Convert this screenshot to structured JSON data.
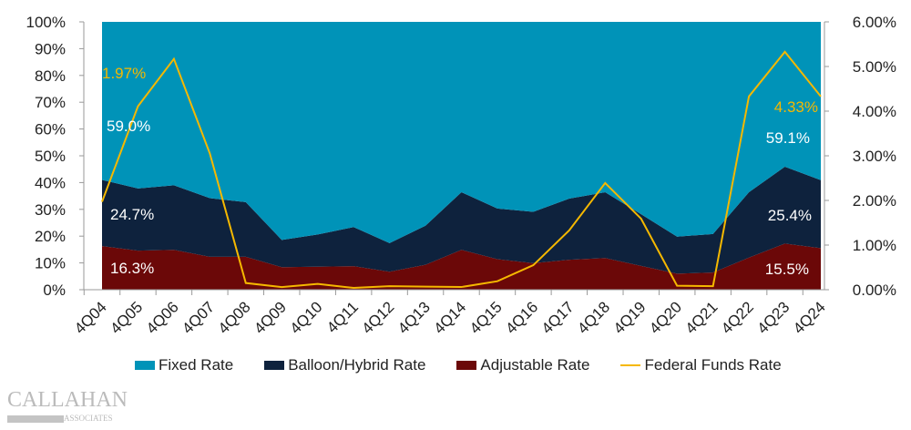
{
  "chart_data": {
    "type": "area",
    "categories": [
      "4Q04",
      "4Q05",
      "4Q06",
      "4Q07",
      "4Q08",
      "4Q09",
      "4Q10",
      "4Q11",
      "4Q12",
      "4Q13",
      "4Q14",
      "4Q15",
      "4Q16",
      "4Q17",
      "4Q18",
      "4Q19",
      "4Q20",
      "4Q21",
      "4Q22",
      "4Q23",
      "4Q24"
    ],
    "series": [
      {
        "name": "Adjustable Rate",
        "type": "stacked-area",
        "axis": "left",
        "color": "#6b0808",
        "values": [
          16.3,
          14.6,
          14.9,
          12.3,
          12.3,
          8.4,
          8.6,
          8.8,
          6.7,
          9.3,
          14.9,
          11.4,
          9.9,
          11.2,
          11.8,
          8.9,
          6.0,
          6.4,
          12.0,
          17.2,
          15.5
        ]
      },
      {
        "name": "Balloon/Hybrid Rate",
        "type": "stacked-area",
        "axis": "left",
        "color": "#0e223d",
        "values": [
          24.7,
          23.2,
          24.1,
          21.9,
          20.4,
          10.2,
          12.0,
          14.6,
          10.7,
          14.6,
          21.5,
          18.9,
          19.2,
          22.8,
          24.6,
          19.3,
          13.8,
          14.4,
          24.4,
          28.7,
          25.4
        ]
      },
      {
        "name": "Fixed Rate",
        "type": "stacked-area",
        "axis": "left",
        "color": "#0093b8",
        "values": [
          59.0,
          62.2,
          61.0,
          65.8,
          67.3,
          81.4,
          79.4,
          76.6,
          82.6,
          76.1,
          63.6,
          69.7,
          70.9,
          66.0,
          63.6,
          71.8,
          80.2,
          79.2,
          63.6,
          54.1,
          59.1
        ]
      },
      {
        "name": "Federal Funds Rate",
        "type": "line",
        "axis": "right",
        "color": "#f5b800",
        "values": [
          1.97,
          4.11,
          5.17,
          3.05,
          0.15,
          0.06,
          0.13,
          0.04,
          0.08,
          0.07,
          0.06,
          0.19,
          0.55,
          1.33,
          2.39,
          1.59,
          0.09,
          0.08,
          4.33,
          5.33,
          4.33
        ]
      }
    ],
    "y_left": {
      "min": 0,
      "max": 100,
      "ticks": [
        "0%",
        "10%",
        "20%",
        "30%",
        "40%",
        "50%",
        "60%",
        "70%",
        "80%",
        "90%",
        "100%"
      ]
    },
    "y_right": {
      "min": 0,
      "max": 6,
      "ticks": [
        "0.00%",
        "1.00%",
        "2.00%",
        "3.00%",
        "4.00%",
        "5.00%",
        "6.00%"
      ]
    },
    "annotations": {
      "left": {
        "fed": "1.97%",
        "fixed": "59.0%",
        "balloon": "24.7%",
        "adjustable": "16.3%"
      },
      "right": {
        "fed": "4.33%",
        "fixed": "59.1%",
        "balloon": "25.4%",
        "adjustable": "15.5%"
      }
    },
    "legend": [
      "Fixed Rate",
      "Balloon/Hybrid Rate",
      "Adjustable Rate",
      "Federal Funds Rate"
    ],
    "legend_position": "bottom",
    "grid": false
  },
  "logo": {
    "line1": "CALLAHAN",
    "line2": "ASSOCIATES"
  }
}
